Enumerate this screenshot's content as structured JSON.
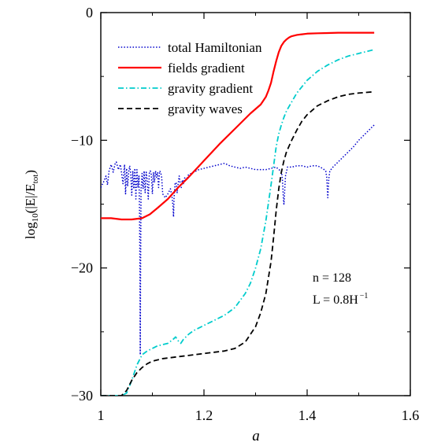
{
  "chart_data": {
    "type": "line",
    "title": "",
    "xlabel": "a",
    "ylabel": {
      "prefix": "log",
      "sub1": "10",
      "mid": "(|E|/E",
      "sub2": "tot",
      "suffix": ")"
    },
    "xlim": [
      1.0,
      1.6
    ],
    "ylim": [
      -30,
      0
    ],
    "xticks": [
      1.0,
      1.2,
      1.4,
      1.6
    ],
    "xtick_labels": [
      "1",
      "1.2",
      "1.4",
      "1.6"
    ],
    "yticks": [
      0,
      -10,
      -20,
      -30
    ],
    "ytick_labels": [
      "0",
      "−10",
      "−20",
      "−30"
    ],
    "grid": false,
    "legend_position": "top-left",
    "annotation": {
      "line1": "n = 128",
      "line2_main": "L = 0.8H",
      "line2_sup": "−1"
    },
    "series": [
      {
        "name": "total Hamiltonian",
        "color": "#0000cc",
        "style": "dotted",
        "x": [
          1.0,
          1.005,
          1.01,
          1.013,
          1.016,
          1.02,
          1.024,
          1.028,
          1.03,
          1.034,
          1.038,
          1.04,
          1.043,
          1.046,
          1.048,
          1.05,
          1.052,
          1.054,
          1.056,
          1.058,
          1.06,
          1.062,
          1.064,
          1.066,
          1.068,
          1.07,
          1.072,
          1.074,
          1.075,
          1.076,
          1.0765,
          1.077,
          1.078,
          1.08,
          1.082,
          1.084,
          1.086,
          1.088,
          1.09,
          1.092,
          1.094,
          1.096,
          1.098,
          1.1,
          1.102,
          1.104,
          1.106,
          1.108,
          1.11,
          1.112,
          1.114,
          1.116,
          1.118,
          1.12,
          1.125,
          1.13,
          1.135,
          1.138,
          1.14,
          1.141,
          1.142,
          1.144,
          1.146,
          1.148,
          1.15,
          1.152,
          1.154,
          1.156,
          1.158,
          1.16,
          1.163,
          1.166,
          1.17,
          1.18,
          1.19,
          1.2,
          1.21,
          1.22,
          1.23,
          1.24,
          1.25,
          1.26,
          1.27,
          1.28,
          1.29,
          1.3,
          1.31,
          1.32,
          1.33,
          1.34,
          1.345,
          1.35,
          1.352,
          1.354,
          1.355,
          1.356,
          1.358,
          1.362,
          1.37,
          1.38,
          1.39,
          1.4,
          1.41,
          1.42,
          1.43,
          1.436,
          1.438,
          1.44,
          1.442,
          1.444,
          1.45,
          1.46,
          1.47,
          1.48,
          1.49,
          1.5,
          1.51,
          1.52,
          1.53
        ],
        "values": [
          -13.7,
          -13.3,
          -12.8,
          -13.5,
          -12.4,
          -11.9,
          -12.5,
          -11.8,
          -11.7,
          -12.3,
          -11.9,
          -12.5,
          -13.4,
          -11.9,
          -14.2,
          -12.2,
          -13.6,
          -12.5,
          -12.0,
          -12.6,
          -14.3,
          -12.4,
          -13.8,
          -12.2,
          -14.6,
          -12.3,
          -13.7,
          -12.8,
          -15.3,
          -21.0,
          -26.8,
          -21.0,
          -13.9,
          -12.6,
          -13.8,
          -12.4,
          -14.1,
          -12.5,
          -13.1,
          -14.6,
          -12.6,
          -12.4,
          -12.7,
          -14.2,
          -12.5,
          -13.3,
          -12.4,
          -12.9,
          -12.5,
          -13.7,
          -12.4,
          -12.5,
          -12.9,
          -14.2,
          -14.5,
          -14.2,
          -13.8,
          -14.4,
          -15.2,
          -16.0,
          -14.5,
          -13.4,
          -13.3,
          -14.1,
          -13.4,
          -12.8,
          -13.4,
          -13.7,
          -13.1,
          -13.4,
          -12.9,
          -13.1,
          -12.7,
          -12.5,
          -12.3,
          -12.2,
          -12.1,
          -12.0,
          -11.9,
          -11.8,
          -12.0,
          -12.1,
          -12.2,
          -12.1,
          -12.2,
          -12.3,
          -12.3,
          -12.3,
          -12.2,
          -12.1,
          -12.3,
          -12.4,
          -13.0,
          -14.6,
          -15.0,
          -14.3,
          -12.8,
          -12.1,
          -12.1,
          -12.0,
          -12.0,
          -12.1,
          -12.0,
          -12.0,
          -12.2,
          -12.4,
          -12.9,
          -14.5,
          -13.0,
          -12.4,
          -12.1,
          -11.7,
          -11.3,
          -10.9,
          -10.5,
          -10.0,
          -9.6,
          -9.2,
          -8.8
        ]
      },
      {
        "name": "fields gradient",
        "color": "#ff0000",
        "style": "solid",
        "x": [
          1.0,
          1.02,
          1.04,
          1.06,
          1.08,
          1.095,
          1.11,
          1.13,
          1.15,
          1.17,
          1.2,
          1.23,
          1.26,
          1.29,
          1.31,
          1.32,
          1.325,
          1.33,
          1.335,
          1.34,
          1.345,
          1.35,
          1.355,
          1.36,
          1.365,
          1.37,
          1.38,
          1.39,
          1.4,
          1.42,
          1.44,
          1.46,
          1.48,
          1.5,
          1.53
        ],
        "values": [
          -16.1,
          -16.1,
          -16.2,
          -16.2,
          -16.1,
          -15.8,
          -15.3,
          -14.6,
          -13.7,
          -12.9,
          -11.6,
          -10.3,
          -9.1,
          -7.9,
          -7.2,
          -6.6,
          -6.1,
          -5.5,
          -4.6,
          -3.8,
          -3.1,
          -2.6,
          -2.3,
          -2.1,
          -1.95,
          -1.85,
          -1.75,
          -1.7,
          -1.65,
          -1.62,
          -1.6,
          -1.58,
          -1.58,
          -1.58,
          -1.58
        ]
      },
      {
        "name": "gravity gradient",
        "color": "#00cccc",
        "style": "dashdot",
        "x": [
          1.0,
          1.01,
          1.02,
          1.03,
          1.04,
          1.05,
          1.06,
          1.07,
          1.08,
          1.09,
          1.1,
          1.11,
          1.12,
          1.13,
          1.14,
          1.145,
          1.15,
          1.155,
          1.16,
          1.17,
          1.18,
          1.2,
          1.22,
          1.24,
          1.26,
          1.28,
          1.29,
          1.3,
          1.31,
          1.32,
          1.33,
          1.34,
          1.345,
          1.35,
          1.355,
          1.36,
          1.37,
          1.38,
          1.39,
          1.4,
          1.42,
          1.44,
          1.46,
          1.48,
          1.5,
          1.53
        ],
        "values": [
          -30.0,
          -30.0,
          -30.0,
          -30.0,
          -30.0,
          -29.8,
          -28.8,
          -27.6,
          -26.8,
          -26.5,
          -26.3,
          -26.1,
          -26.0,
          -25.9,
          -25.6,
          -25.4,
          -25.7,
          -25.9,
          -25.6,
          -25.2,
          -24.9,
          -24.5,
          -24.1,
          -23.7,
          -23.1,
          -22.0,
          -21.2,
          -20.0,
          -18.5,
          -16.3,
          -13.5,
          -10.5,
          -9.5,
          -8.8,
          -8.2,
          -7.7,
          -7.0,
          -6.3,
          -5.8,
          -5.3,
          -4.6,
          -4.1,
          -3.7,
          -3.4,
          -3.2,
          -2.9
        ]
      },
      {
        "name": "gravity waves",
        "color": "#000000",
        "style": "dashed",
        "x": [
          1.0,
          1.02,
          1.04,
          1.05,
          1.06,
          1.07,
          1.08,
          1.09,
          1.1,
          1.12,
          1.14,
          1.16,
          1.18,
          1.2,
          1.22,
          1.24,
          1.26,
          1.28,
          1.3,
          1.31,
          1.32,
          1.33,
          1.335,
          1.34,
          1.345,
          1.35,
          1.355,
          1.36,
          1.37,
          1.38,
          1.39,
          1.4,
          1.42,
          1.44,
          1.46,
          1.48,
          1.5,
          1.53
        ],
        "values": [
          -30.0,
          -30.0,
          -30.0,
          -29.6,
          -28.8,
          -28.2,
          -27.8,
          -27.5,
          -27.3,
          -27.1,
          -27.0,
          -26.9,
          -26.8,
          -26.7,
          -26.6,
          -26.5,
          -26.3,
          -25.8,
          -24.6,
          -23.5,
          -22.0,
          -19.5,
          -17.6,
          -15.5,
          -13.8,
          -12.5,
          -11.6,
          -10.9,
          -10.0,
          -9.2,
          -8.5,
          -8.0,
          -7.3,
          -6.9,
          -6.6,
          -6.4,
          -6.3,
          -6.2
        ]
      }
    ]
  }
}
